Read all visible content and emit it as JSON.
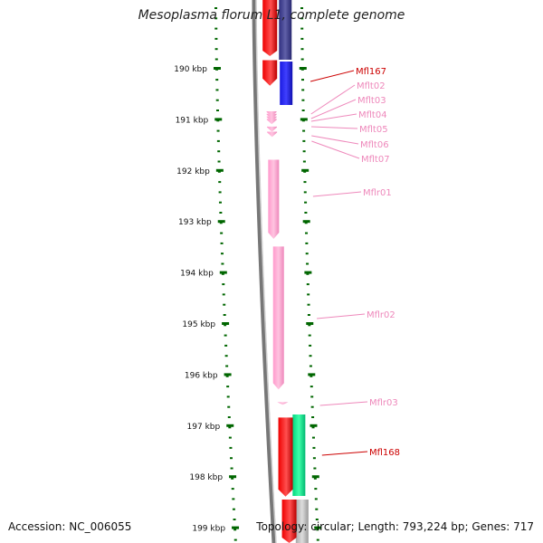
{
  "title": "Mesoplasma florum L1, complete genome",
  "footer": {
    "accession": "Accession: NC_006055",
    "topology": "Topology: circular; Length: 793,224 bp; Genes: 717"
  },
  "scale": {
    "unit": "kbp",
    "ticks": [
      {
        "label": "190 kbp",
        "kbp": 190
      },
      {
        "label": "191 kbp",
        "kbp": 191
      },
      {
        "label": "192 kbp",
        "kbp": 192
      },
      {
        "label": "193 kbp",
        "kbp": 193
      },
      {
        "label": "194 kbp",
        "kbp": 194
      },
      {
        "label": "195 kbp",
        "kbp": 195
      },
      {
        "label": "196 kbp",
        "kbp": 196
      },
      {
        "label": "197 kbp",
        "kbp": 197
      },
      {
        "label": "198 kbp",
        "kbp": 198
      },
      {
        "label": "199 kbp",
        "kbp": 199
      }
    ]
  },
  "colors": {
    "cds": "#ff0000",
    "trna": "#ff99cc",
    "rrna": "#ff99cc",
    "gc_high": "#2020ee",
    "gc_mid": "#303088",
    "skew": "#00e688",
    "gray": "#bbbbbb",
    "tick": "#006600",
    "backbone": "#888888"
  },
  "features": [
    {
      "name": "Mfl167",
      "type": "cds",
      "start_kbp": 189.85,
      "end_kbp": 190.35,
      "color": "#cc0000"
    },
    {
      "name": "Mflt02",
      "type": "trna",
      "start_kbp": 190.85,
      "end_kbp": 190.9,
      "color": "#ee88bb"
    },
    {
      "name": "Mflt03",
      "type": "trna",
      "start_kbp": 190.9,
      "end_kbp": 190.95,
      "color": "#ee88bb"
    },
    {
      "name": "Mflt04",
      "type": "trna",
      "start_kbp": 190.95,
      "end_kbp": 191.0,
      "color": "#ee88bb"
    },
    {
      "name": "Mflt05",
      "type": "trna",
      "start_kbp": 191.0,
      "end_kbp": 191.05,
      "color": "#ee88bb"
    },
    {
      "name": "Mflt06",
      "type": "trna",
      "start_kbp": 191.15,
      "end_kbp": 191.2,
      "color": "#ee88bb"
    },
    {
      "name": "Mflt07",
      "type": "trna",
      "start_kbp": 191.25,
      "end_kbp": 191.3,
      "color": "#ee88bb"
    },
    {
      "name": "Mflr01",
      "type": "rrna",
      "start_kbp": 191.8,
      "end_kbp": 193.35,
      "color": "#ee88bb"
    },
    {
      "name": "Mflr02",
      "type": "rrna",
      "start_kbp": 193.5,
      "end_kbp": 196.3,
      "color": "#ee88bb"
    },
    {
      "name": "Mflr03",
      "type": "rrna",
      "start_kbp": 196.55,
      "end_kbp": 196.6,
      "color": "#ee88bb"
    },
    {
      "name": "Mfl168",
      "type": "cds",
      "start_kbp": 196.85,
      "end_kbp": 198.4,
      "color": "#cc0000"
    }
  ]
}
